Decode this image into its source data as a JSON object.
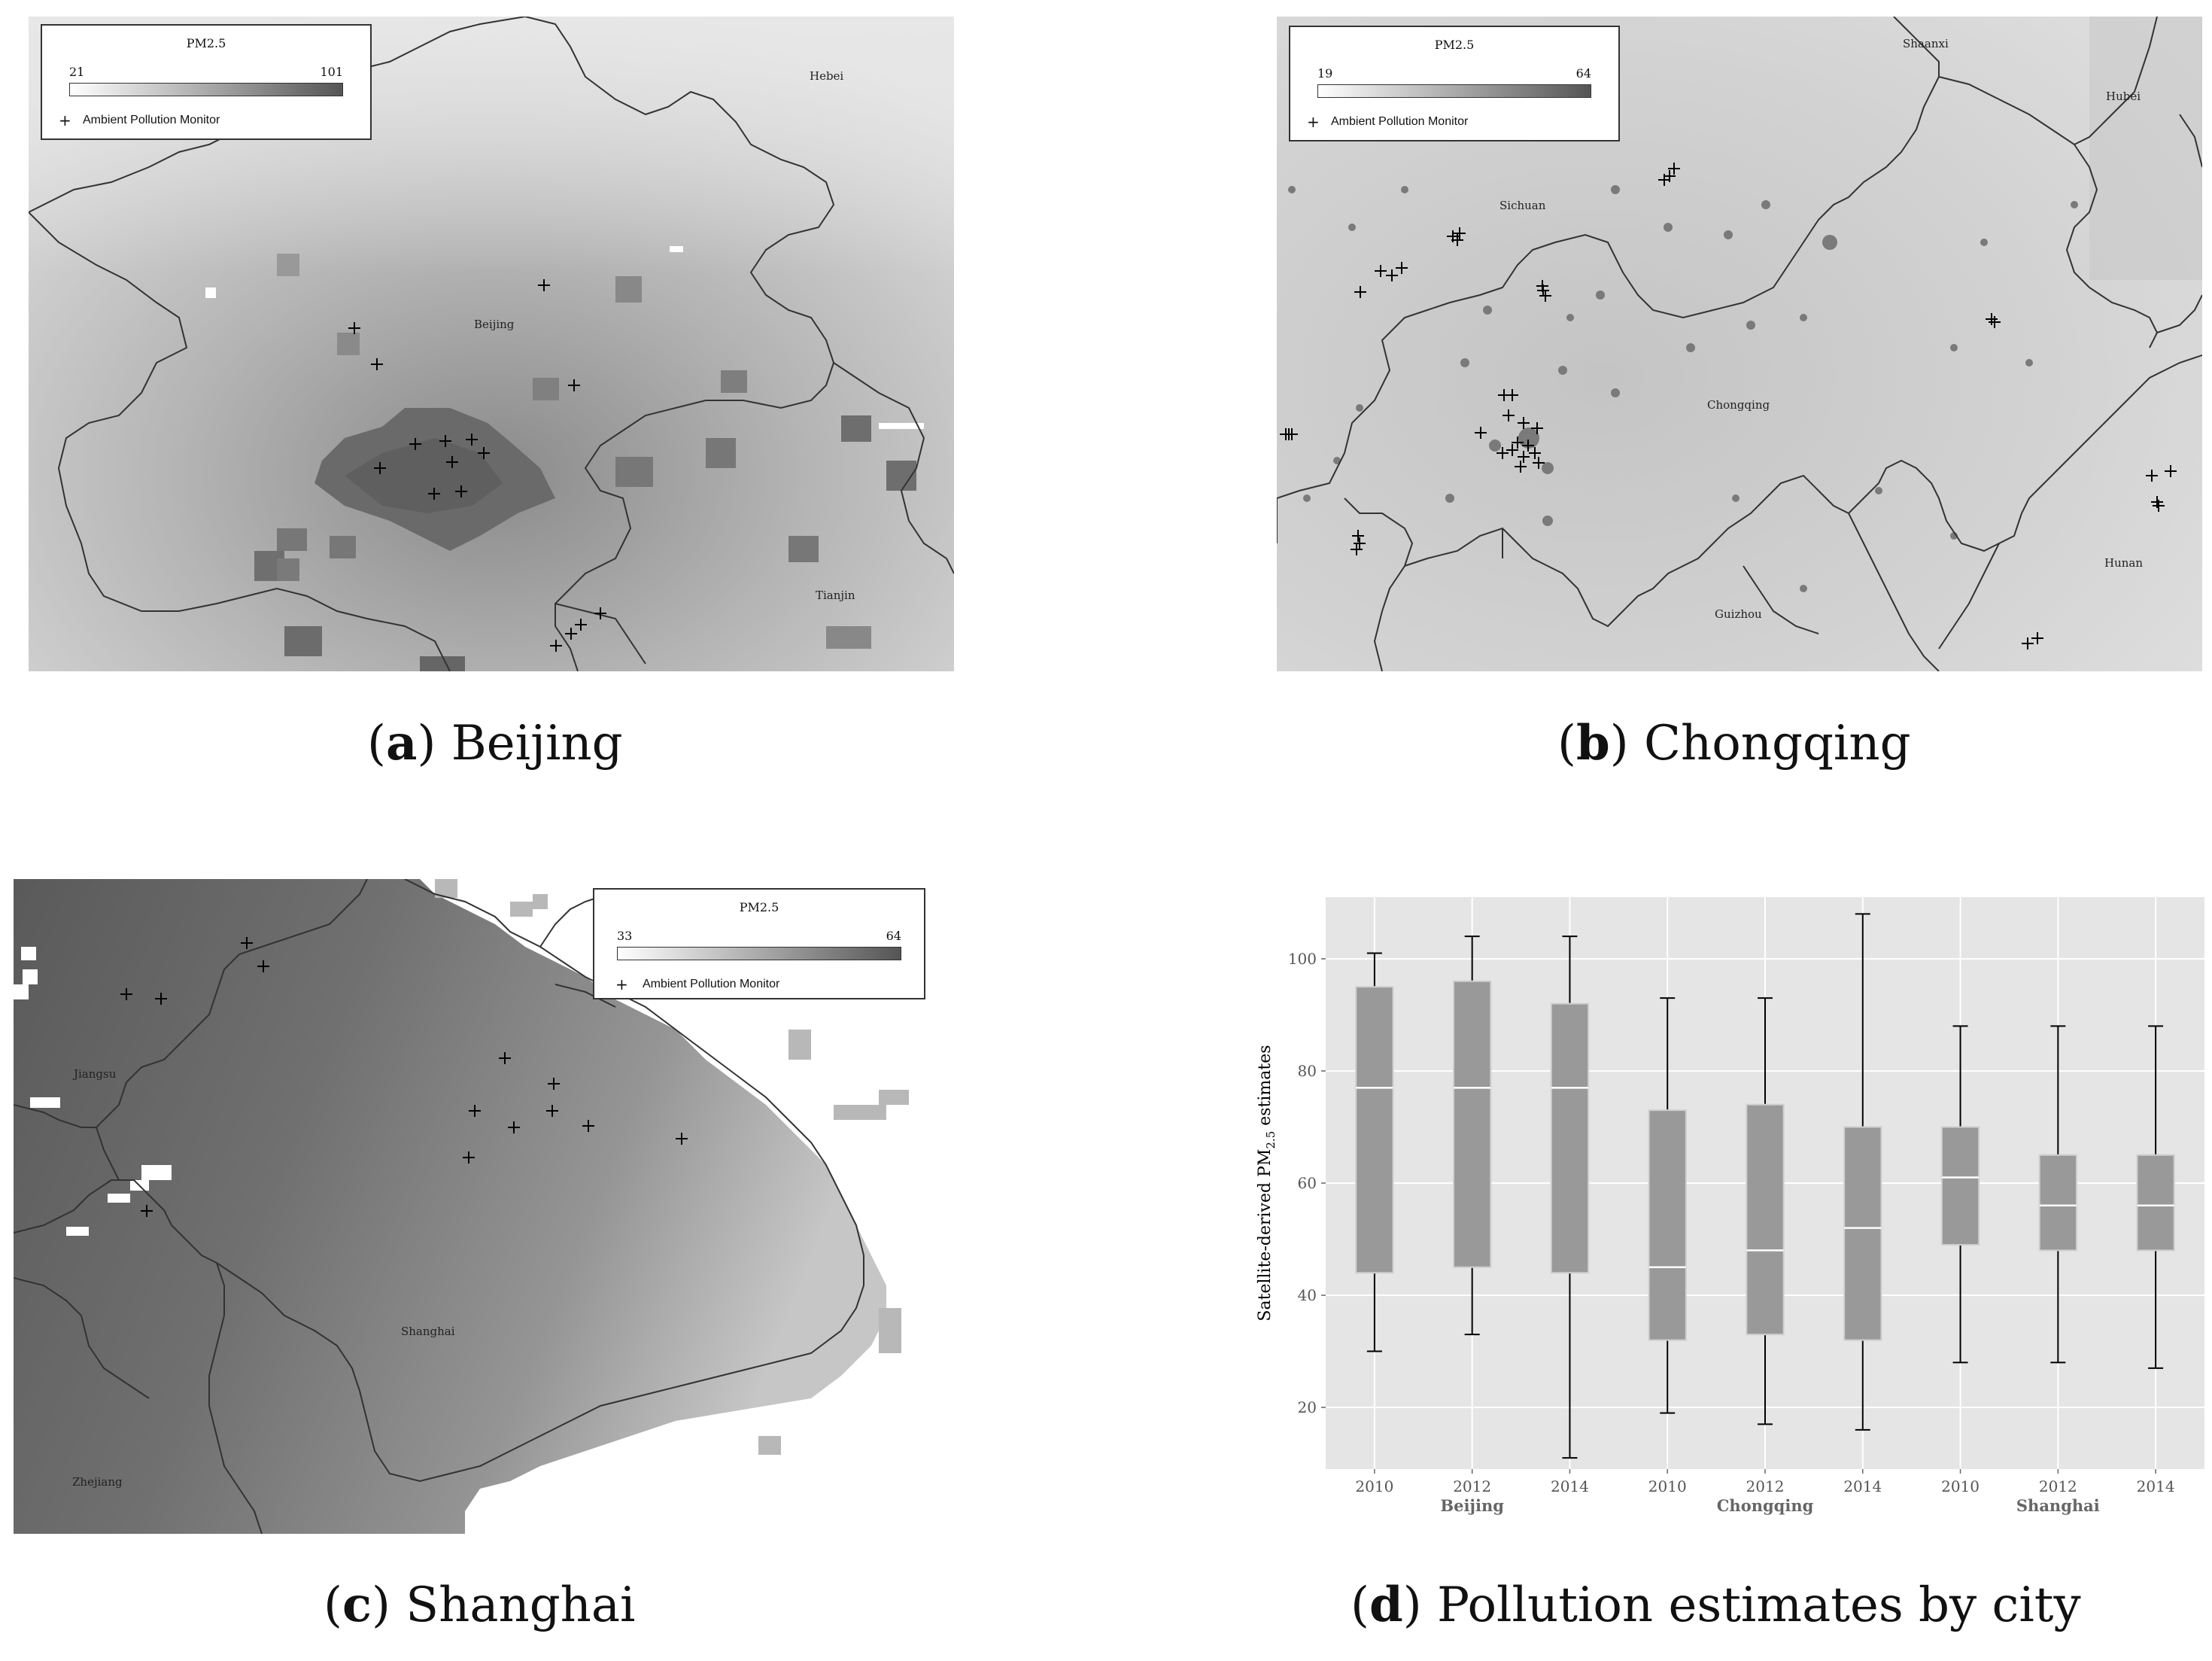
{
  "panels": {
    "a": {
      "legend": {
        "title": "PM2.5",
        "min": "21",
        "max": "101",
        "marker": "+",
        "marker_label": "Ambient Pollution Monitor"
      },
      "labels": {
        "hebei": "Hebei",
        "beijing": "Beijing",
        "tianjin": "Tianjin"
      },
      "caption": {
        "letter": "a",
        "text": "Beijing"
      }
    },
    "b": {
      "legend": {
        "title": "PM2.5",
        "min": "19",
        "max": "64",
        "marker": "+",
        "marker_label": "Ambient Pollution Monitor"
      },
      "labels": {
        "shaanxi": "Shaanxi",
        "hubei": "Hubei",
        "sichuan": "Sichuan",
        "chongqing": "Chongqing",
        "hunan": "Hunan",
        "guizhou": "Guizhou"
      },
      "caption": {
        "letter": "b",
        "text": "Chongqing"
      }
    },
    "c": {
      "legend": {
        "title": "PM2.5",
        "min": "33",
        "max": "64",
        "marker": "+",
        "marker_label": "Ambient Pollution Monitor"
      },
      "labels": {
        "jiangsu": "Jiangsu",
        "shanghai": "Shanghai",
        "zhejiang": "Zhejiang"
      },
      "caption": {
        "letter": "c",
        "text": "Shanghai"
      }
    },
    "d": {
      "caption": {
        "letter": "d",
        "text": "Pollution estimates by city"
      }
    }
  },
  "chart_data": {
    "type": "box",
    "ylabel": "Satellite-derived PM2.5 estimates",
    "ylim": [
      9,
      111
    ],
    "yticks": [
      20,
      40,
      60,
      80,
      100
    ],
    "grid": true,
    "groups": [
      "Beijing",
      "Chongqing",
      "Shanghai"
    ],
    "categories": [
      "2010",
      "2012",
      "2014",
      "2010",
      "2012",
      "2014",
      "2010",
      "2012",
      "2014"
    ],
    "boxes": [
      {
        "group": "Beijing",
        "year": "2010",
        "min": 30,
        "q1": 44,
        "median": 77,
        "q3": 95,
        "max": 101
      },
      {
        "group": "Beijing",
        "year": "2012",
        "min": 33,
        "q1": 45,
        "median": 77,
        "q3": 96,
        "max": 104
      },
      {
        "group": "Beijing",
        "year": "2014",
        "min": 11,
        "q1": 44,
        "median": 77,
        "q3": 92,
        "max": 104
      },
      {
        "group": "Chongqing",
        "year": "2010",
        "min": 19,
        "q1": 32,
        "median": 45,
        "q3": 73,
        "max": 93
      },
      {
        "group": "Chongqing",
        "year": "2012",
        "min": 17,
        "q1": 33,
        "median": 48,
        "q3": 74,
        "max": 93
      },
      {
        "group": "Chongqing",
        "year": "2014",
        "min": 16,
        "q1": 32,
        "median": 52,
        "q3": 70,
        "max": 108
      },
      {
        "group": "Shanghai",
        "year": "2010",
        "min": 28,
        "q1": 49,
        "median": 61,
        "q3": 70,
        "max": 88
      },
      {
        "group": "Shanghai",
        "year": "2012",
        "min": 28,
        "q1": 48,
        "median": 56,
        "q3": 65,
        "max": 88
      },
      {
        "group": "Shanghai",
        "year": "2014",
        "min": 27,
        "q1": 48,
        "median": 56,
        "q3": 65,
        "max": 88
      }
    ],
    "colors": {
      "box": "#999999",
      "panel_bg": "#e5e5e5",
      "median": "#ffffff"
    }
  }
}
